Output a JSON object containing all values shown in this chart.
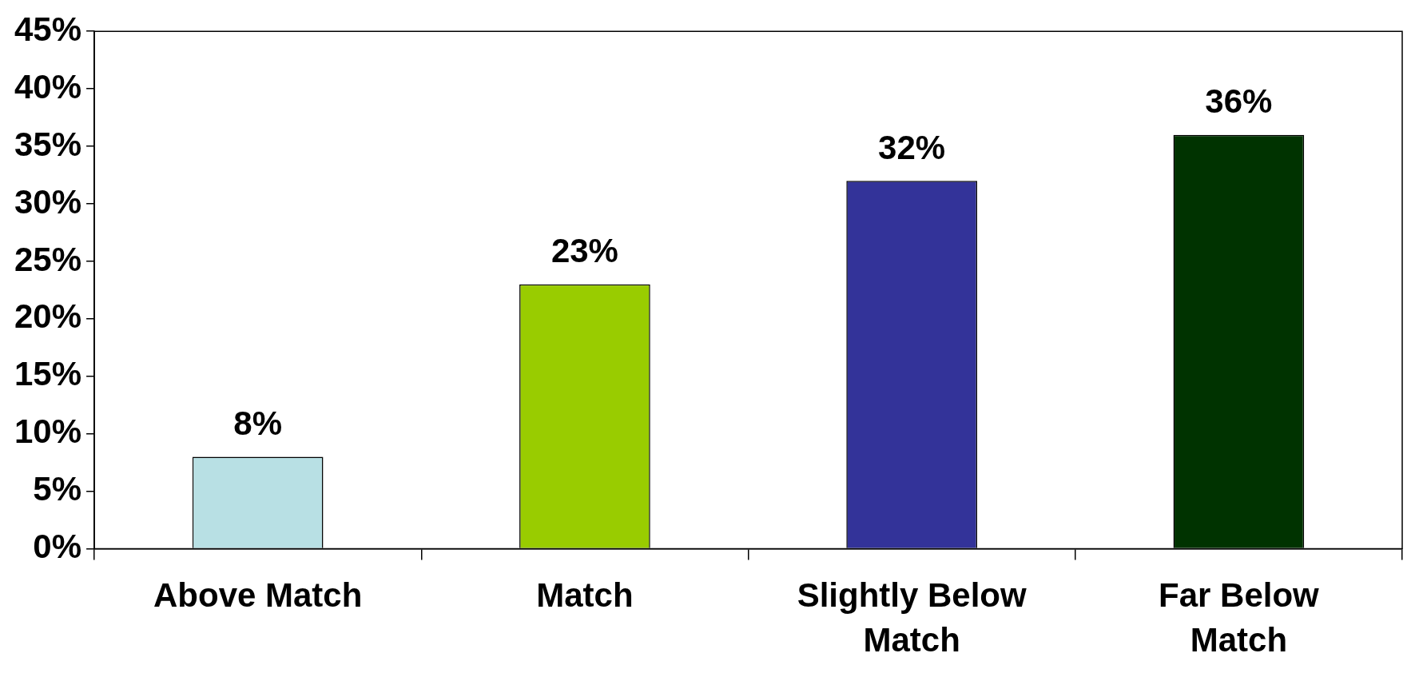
{
  "chart_data": {
    "type": "bar",
    "categories": [
      "Above Match",
      "Match",
      "Slightly Below Match",
      "Far Below Match"
    ],
    "values": [
      8,
      23,
      32,
      36
    ],
    "colors": [
      "#b8e0e4",
      "#99cc00",
      "#333399",
      "#003300"
    ],
    "value_labels": [
      "8%",
      "23%",
      "32%",
      "36%"
    ],
    "ylim": [
      0,
      45
    ],
    "yticks": [
      {
        "value": 0,
        "label": "0%"
      },
      {
        "value": 5,
        "label": "5%"
      },
      {
        "value": 10,
        "label": "10%"
      },
      {
        "value": 15,
        "label": "15%"
      },
      {
        "value": 20,
        "label": "20%"
      },
      {
        "value": 25,
        "label": "25%"
      },
      {
        "value": 30,
        "label": "30%"
      },
      {
        "value": 35,
        "label": "35%"
      },
      {
        "value": 40,
        "label": "40%"
      },
      {
        "value": 45,
        "label": "45%"
      }
    ],
    "grid": false,
    "legend": false
  }
}
